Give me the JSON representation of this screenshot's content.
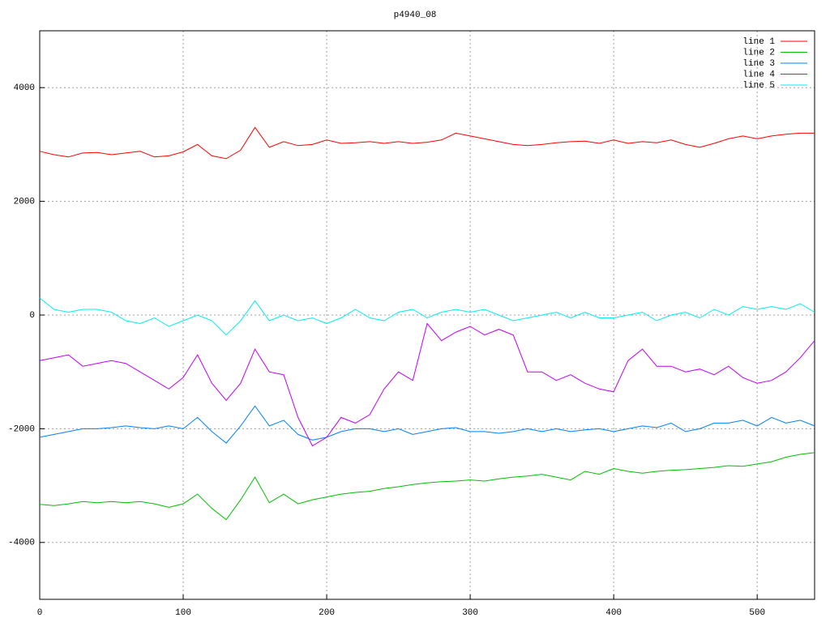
{
  "chart_data": {
    "type": "line",
    "title": "p4940_08",
    "x": [
      0,
      10,
      20,
      30,
      40,
      50,
      60,
      70,
      80,
      90,
      100,
      110,
      120,
      130,
      140,
      150,
      160,
      170,
      180,
      190,
      200,
      210,
      220,
      230,
      240,
      250,
      260,
      270,
      280,
      290,
      300,
      310,
      320,
      330,
      340,
      350,
      360,
      370,
      380,
      390,
      400,
      410,
      420,
      430,
      440,
      450,
      460,
      470,
      480,
      490,
      500,
      510,
      520,
      530,
      540
    ],
    "series": [
      {
        "name": "line 1",
        "color": "#ff0000",
        "values": [
          2880,
          2820,
          2780,
          2850,
          2860,
          2820,
          2850,
          2880,
          2780,
          2800,
          2870,
          3000,
          2800,
          2750,
          2900,
          3300,
          2950,
          3050,
          2980,
          3000,
          3080,
          3020,
          3030,
          3050,
          3020,
          3050,
          3020,
          3040,
          3080,
          3200,
          3150,
          3100,
          3050,
          3000,
          2980,
          3000,
          3030,
          3050,
          3060,
          3020,
          3080,
          3020,
          3050,
          3030,
          3080,
          3000,
          2950,
          3020,
          3100,
          3150,
          3100,
          3150,
          3180,
          3200,
          3200
        ]
      },
      {
        "name": "line 2",
        "color": "#00c000",
        "values": [
          -3330,
          -3350,
          -3320,
          -3280,
          -3300,
          -3280,
          -3300,
          -3280,
          -3320,
          -3380,
          -3320,
          -3150,
          -3400,
          -3600,
          -3250,
          -2850,
          -3300,
          -3150,
          -3320,
          -3250,
          -3200,
          -3150,
          -3120,
          -3100,
          -3050,
          -3020,
          -2980,
          -2950,
          -2930,
          -2920,
          -2900,
          -2920,
          -2880,
          -2850,
          -2830,
          -2800,
          -2850,
          -2900,
          -2750,
          -2800,
          -2700,
          -2750,
          -2780,
          -2750,
          -2730,
          -2720,
          -2700,
          -2680,
          -2650,
          -2660,
          -2620,
          -2580,
          -2500,
          -2450,
          -2420
        ]
      },
      {
        "name": "line 3",
        "color": "#0080ff",
        "values": [
          -2150,
          -2100,
          -2050,
          -2000,
          -2000,
          -1980,
          -1950,
          -1980,
          -2000,
          -1950,
          -2000,
          -1800,
          -2050,
          -2250,
          -1950,
          -1600,
          -1950,
          -1850,
          -2100,
          -2200,
          -2150,
          -2050,
          -2000,
          -2000,
          -2050,
          -2000,
          -2100,
          -2050,
          -2000,
          -1980,
          -2050,
          -2050,
          -2080,
          -2050,
          -2000,
          -2050,
          -2000,
          -2050,
          -2020,
          -2000,
          -2050,
          -2000,
          -1950,
          -1980,
          -1900,
          -2050,
          -2000,
          -1900,
          -1900,
          -1850,
          -1950,
          -1800,
          -1900,
          -1850,
          -1950
        ]
      },
      {
        "name": "line 4",
        "color": "#c000ff",
        "values": [
          -800,
          -750,
          -700,
          -900,
          -850,
          -800,
          -850,
          -1000,
          -1150,
          -1300,
          -1100,
          -700,
          -1200,
          -1500,
          -1200,
          -600,
          -1000,
          -1050,
          -1800,
          -2300,
          -2150,
          -1800,
          -1900,
          -1750,
          -1300,
          -1000,
          -1150,
          -150,
          -450,
          -300,
          -200,
          -350,
          -250,
          -350,
          -1000,
          -1000,
          -1150,
          -1050,
          -1200,
          -1300,
          -1350,
          -800,
          -600,
          -900,
          -900,
          -1000,
          -950,
          -1050,
          -900,
          -1100,
          -1200,
          -1150,
          -1000,
          -750,
          -450
        ]
      },
      {
        "name": "line 5",
        "color": "#00eeee",
        "values": [
          300,
          100,
          50,
          100,
          100,
          50,
          -100,
          -150,
          -50,
          -200,
          -100,
          0,
          -100,
          -350,
          -100,
          250,
          -100,
          0,
          -100,
          -50,
          -150,
          -50,
          100,
          -50,
          -100,
          50,
          100,
          -50,
          50,
          100,
          50,
          100,
          0,
          -100,
          -50,
          0,
          50,
          -50,
          50,
          -50,
          -50,
          0,
          50,
          -100,
          0,
          50,
          -50,
          100,
          0,
          150,
          100,
          150,
          100,
          200,
          50
        ]
      }
    ],
    "xlim": [
      0,
      540
    ],
    "xticks": [
      0,
      100,
      200,
      300,
      400,
      500
    ],
    "ylim": [
      -5000,
      5000
    ],
    "yticks": [
      -4000,
      -2000,
      0,
      2000,
      4000
    ],
    "grid": true,
    "legend": "top-right"
  }
}
